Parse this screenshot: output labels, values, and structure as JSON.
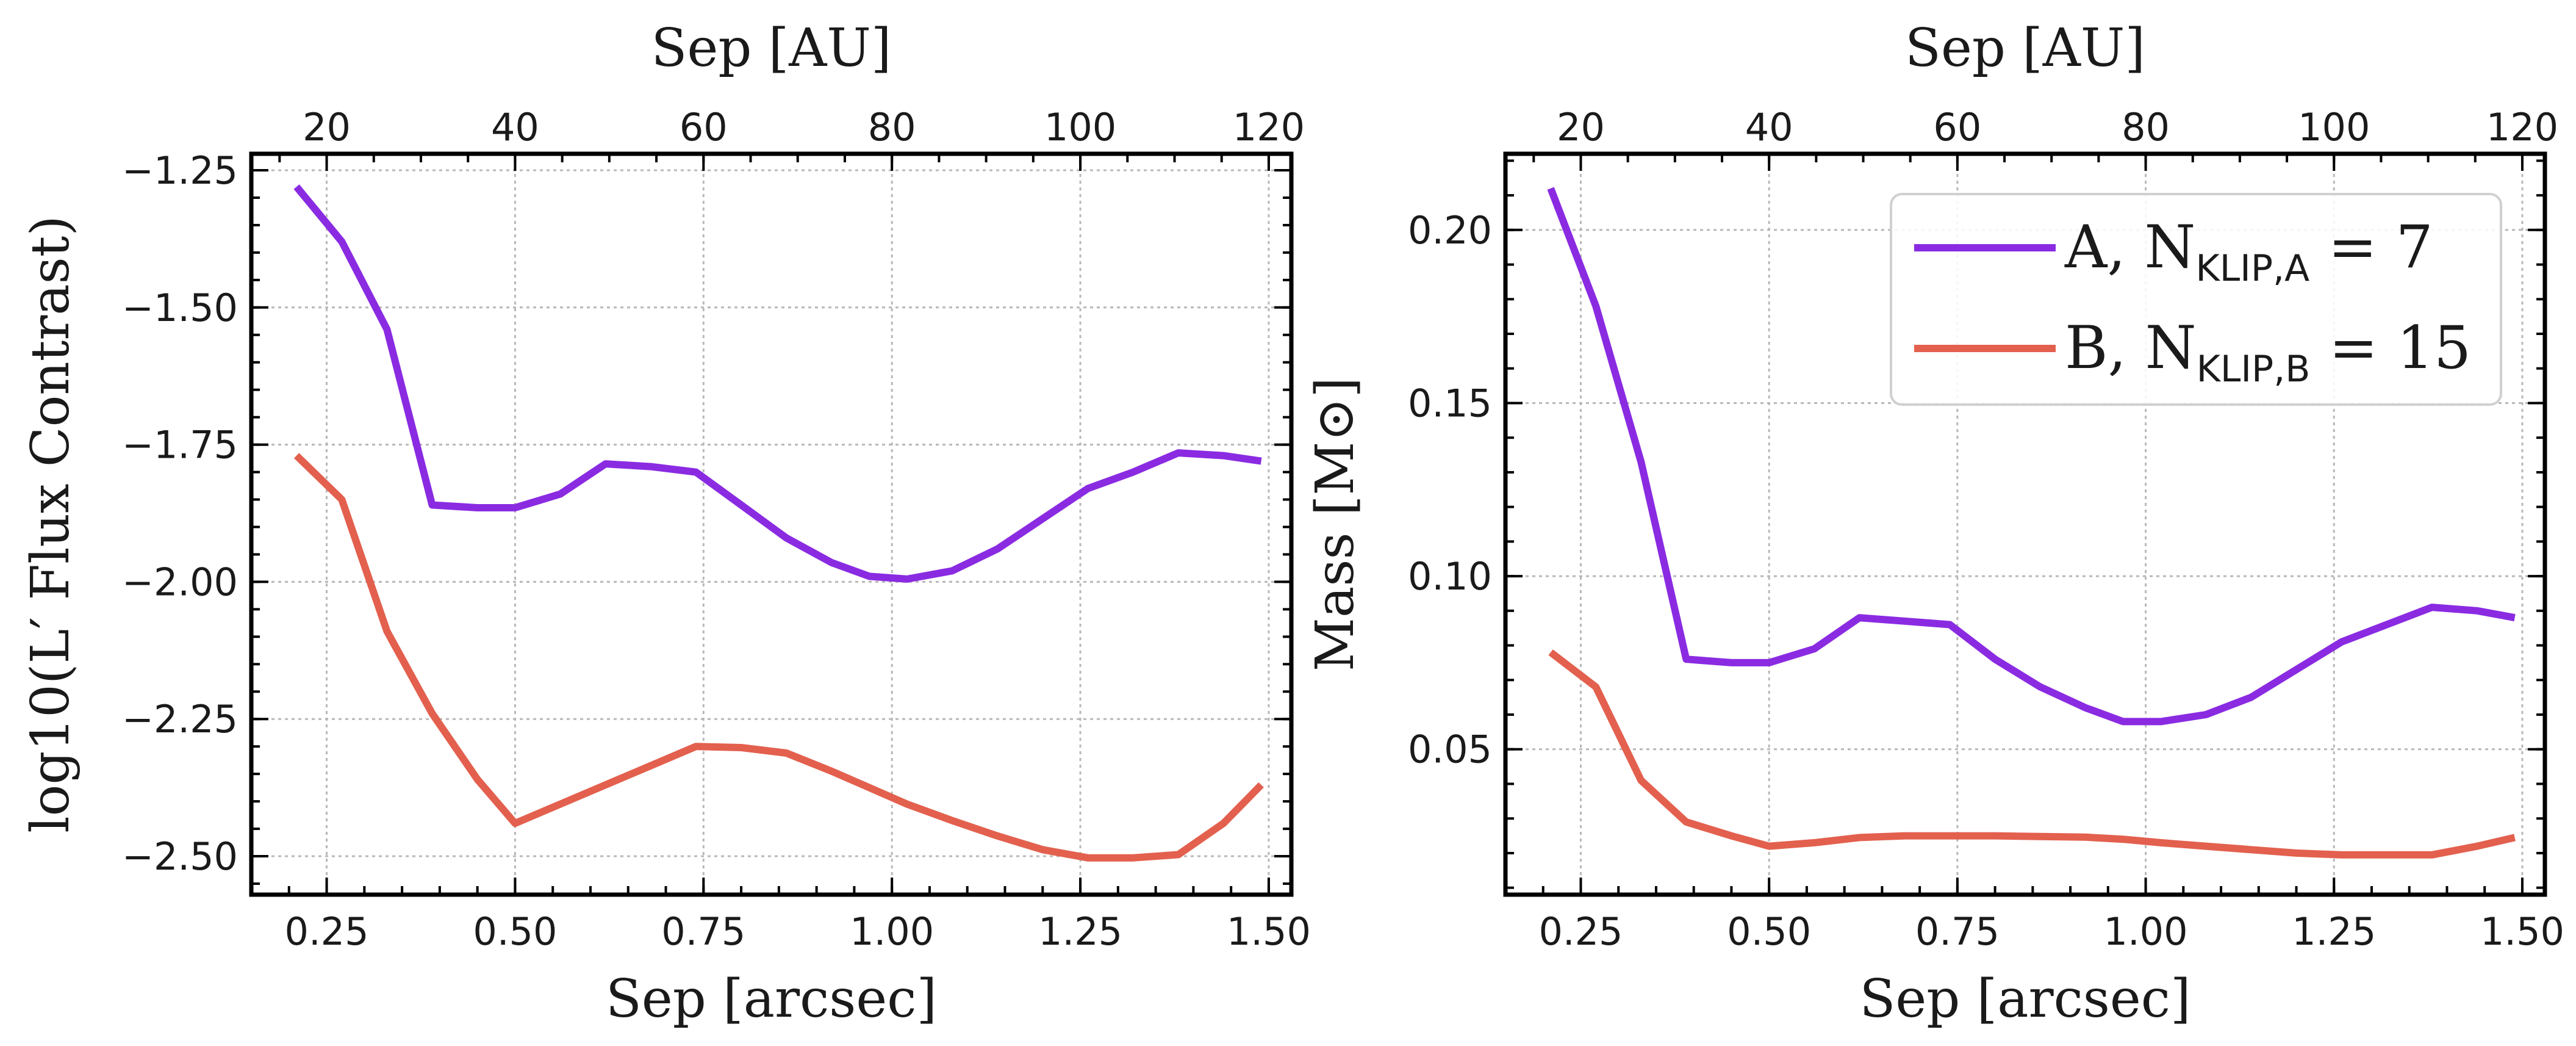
{
  "chart_data": [
    {
      "type": "line",
      "xlabel": "Sep [arcsec]",
      "ylabel": "log10(L′ Flux Contrast)",
      "top_xlabel": "Sep [AU]",
      "xlim": [
        0.15,
        1.53
      ],
      "ylim": [
        -2.57,
        -1.22
      ],
      "xticks": [
        0.25,
        0.5,
        0.75,
        1.0,
        1.25,
        1.5
      ],
      "xtick_labels": [
        "0.25",
        "0.50",
        "0.75",
        "1.00",
        "1.25",
        "1.50"
      ],
      "yticks": [
        -1.25,
        -1.5,
        -1.75,
        -2.0,
        -2.25,
        -2.5
      ],
      "ytick_labels": [
        "−1.25",
        "−1.50",
        "−1.75",
        "−2.00",
        "−2.25",
        "−2.50"
      ],
      "top_ticks_au": [
        20,
        40,
        60,
        80,
        100,
        120
      ],
      "top_tick_labels": [
        "20",
        "40",
        "60",
        "80",
        "100",
        "120"
      ],
      "au_per_arcsec": 80,
      "grid": true,
      "x": [
        0.21,
        0.27,
        0.33,
        0.39,
        0.45,
        0.5,
        0.56,
        0.62,
        0.68,
        0.74,
        0.8,
        0.86,
        0.92,
        0.97,
        1.02,
        1.08,
        1.14,
        1.2,
        1.26,
        1.32,
        1.38,
        1.44,
        1.49
      ],
      "series": [
        {
          "color": "#8A2BE2",
          "values": [
            -1.28,
            -1.38,
            -1.54,
            -1.86,
            -1.865,
            -1.865,
            -1.84,
            -1.785,
            -1.79,
            -1.8,
            -1.86,
            -1.92,
            -1.965,
            -1.99,
            -1.995,
            -1.98,
            -1.94,
            -1.885,
            -1.83,
            -1.8,
            -1.765,
            -1.77,
            -1.78
          ]
        },
        {
          "color": "#E3604E",
          "values": [
            -1.77,
            -1.85,
            -2.09,
            -2.24,
            -2.36,
            -2.44,
            -2.405,
            -2.37,
            -2.335,
            -2.3,
            -2.302,
            -2.312,
            -2.345,
            -2.375,
            -2.405,
            -2.435,
            -2.463,
            -2.488,
            -2.503,
            -2.503,
            -2.497,
            -2.44,
            -2.37
          ]
        }
      ]
    },
    {
      "type": "line",
      "xlabel": "Sep [arcsec]",
      "ylabel": "Mass [M⊙]",
      "top_xlabel": "Sep [AU]",
      "xlim": [
        0.15,
        1.53
      ],
      "ylim": [
        0.008,
        0.222
      ],
      "xticks": [
        0.25,
        0.5,
        0.75,
        1.0,
        1.25,
        1.5
      ],
      "xtick_labels": [
        "0.25",
        "0.50",
        "0.75",
        "1.00",
        "1.25",
        "1.50"
      ],
      "yticks": [
        0.2,
        0.15,
        0.1,
        0.05
      ],
      "ytick_labels": [
        "0.20",
        "0.15",
        "0.10",
        "0.05"
      ],
      "top_ticks_au": [
        20,
        40,
        60,
        80,
        100,
        120
      ],
      "top_tick_labels": [
        "20",
        "40",
        "60",
        "80",
        "100",
        "120"
      ],
      "au_per_arcsec": 80,
      "grid": true,
      "legend_position": "top-right",
      "x": [
        0.21,
        0.27,
        0.33,
        0.39,
        0.45,
        0.5,
        0.56,
        0.62,
        0.68,
        0.74,
        0.8,
        0.86,
        0.92,
        0.97,
        1.02,
        1.08,
        1.14,
        1.2,
        1.26,
        1.32,
        1.38,
        1.44,
        1.49
      ],
      "series": [
        {
          "name": "A",
          "legend_main": "A, N",
          "legend_sub": "KLIP,A",
          "legend_value": " = 7",
          "color": "#8A2BE2",
          "values": [
            0.212,
            0.178,
            0.133,
            0.076,
            0.075,
            0.075,
            0.079,
            0.088,
            0.087,
            0.086,
            0.076,
            0.068,
            0.062,
            0.058,
            0.058,
            0.06,
            0.065,
            0.073,
            0.081,
            0.086,
            0.091,
            0.09,
            0.088
          ]
        },
        {
          "name": "B",
          "legend_main": "B, N",
          "legend_sub": "KLIP,B",
          "legend_value": " = 15",
          "color": "#E3604E",
          "values": [
            0.078,
            0.068,
            0.041,
            0.029,
            0.025,
            0.022,
            0.023,
            0.0245,
            0.025,
            0.025,
            0.025,
            0.0248,
            0.0246,
            0.024,
            0.023,
            0.022,
            0.021,
            0.02,
            0.0195,
            0.0195,
            0.0195,
            0.022,
            0.0245
          ]
        }
      ]
    }
  ]
}
